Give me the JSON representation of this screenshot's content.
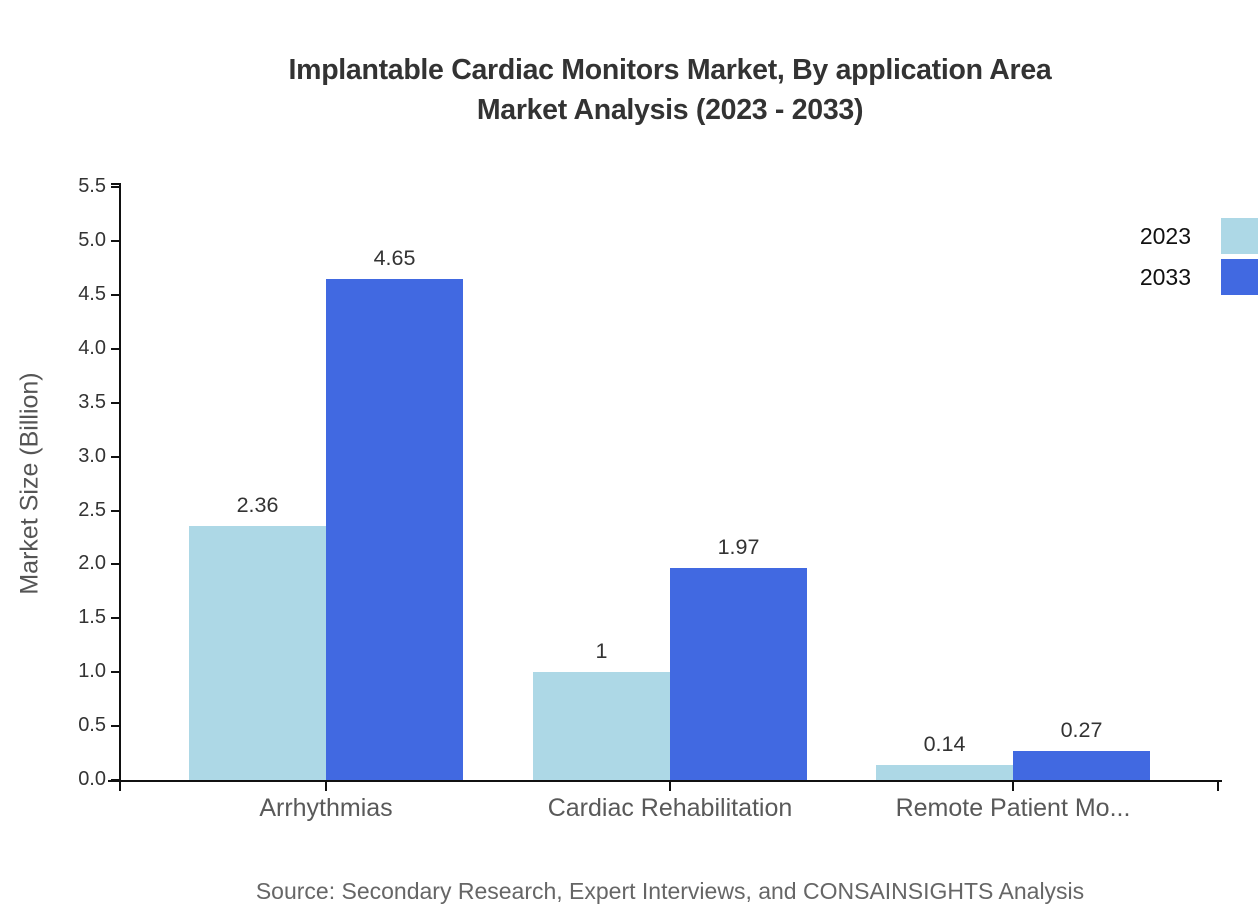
{
  "chart_data": {
    "type": "bar",
    "title_lines": [
      "Implantable Cardiac Monitors Market, By application Area",
      "Market Analysis (2023 - 2033)"
    ],
    "title": "Implantable Cardiac Monitors Market, By application Area Market Analysis (2023 - 2033)",
    "categories": [
      "Arrhythmias",
      "Cardiac Rehabilitation",
      "Remote Patient Mo..."
    ],
    "series": [
      {
        "name": "2023",
        "color": "#ADD8E6",
        "values": [
          2.36,
          1,
          0.14
        ]
      },
      {
        "name": "2033",
        "color": "#4169E1",
        "values": [
          4.65,
          1.97,
          0.27
        ]
      }
    ],
    "value_labels": [
      [
        "2.36",
        "1",
        "0.14"
      ],
      [
        "4.65",
        "1.97",
        "0.27"
      ]
    ],
    "xlabel": "",
    "ylabel": "Market Size (Billion)",
    "ylim": [
      0,
      5.5
    ],
    "ytick_step": 0.5,
    "ytick_decimals": 1,
    "grid": false,
    "legend_position": "top-right",
    "source": "Source: Secondary Research, Expert Interviews, and CONSAINSIGHTS Analysis",
    "colors": {
      "background": "#ffffff",
      "axis": "#111111",
      "title_text": "#333333",
      "tick_text": "#333333",
      "category_text": "#595959",
      "value_text": "#333333",
      "ylabel_text": "#555555",
      "source_text": "#666666",
      "legend_text": "#111111"
    }
  }
}
